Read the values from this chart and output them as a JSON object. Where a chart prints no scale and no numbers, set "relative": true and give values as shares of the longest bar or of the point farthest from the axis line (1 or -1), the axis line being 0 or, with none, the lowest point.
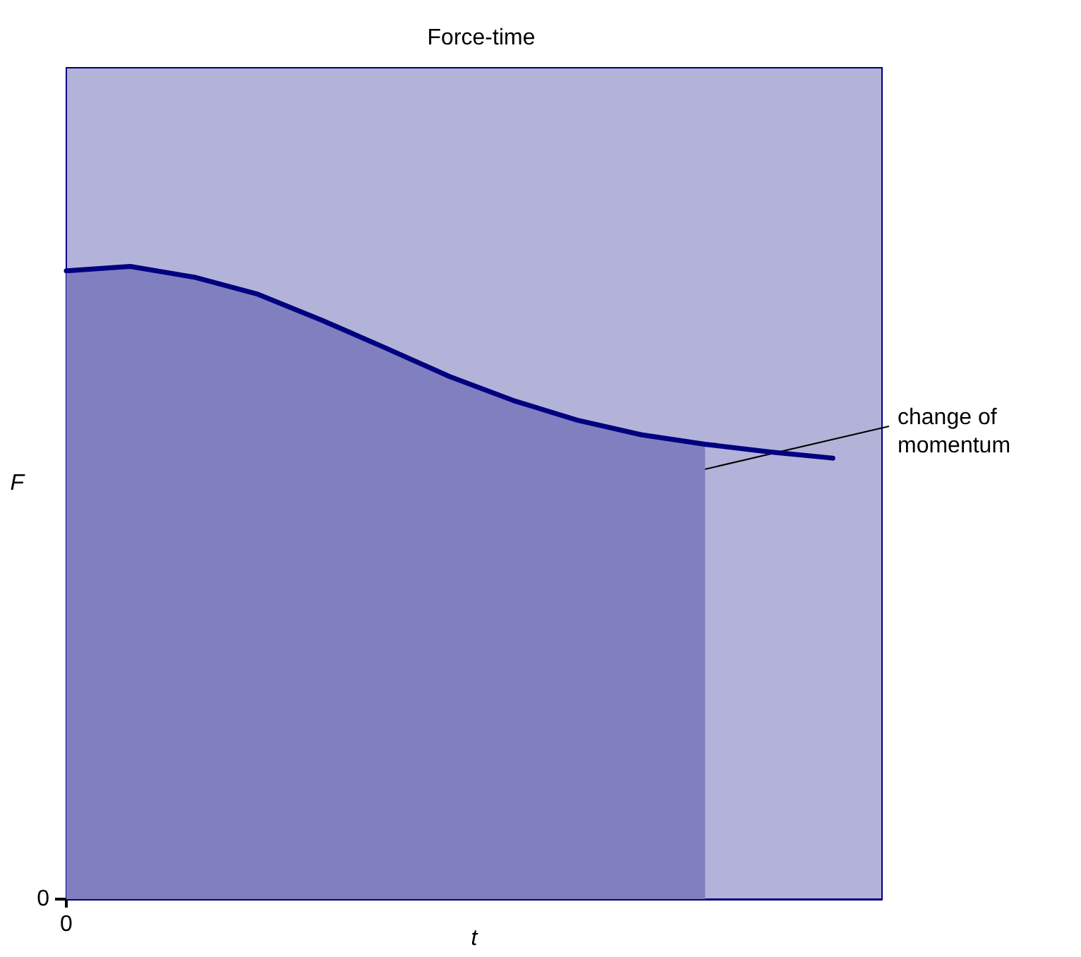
{
  "chart_data": {
    "type": "line",
    "title": "Force-time",
    "xlabel": "t",
    "ylabel": "F",
    "relative": true,
    "grid": false,
    "marker": "none",
    "line_style": "solid",
    "annotations": [
      "change of momentum",
      "0",
      "0"
    ],
    "categories": [
      null,
      null,
      null,
      null,
      null,
      null,
      null,
      null,
      null,
      null,
      null,
      null,
      null
    ],
    "series": [
      {
        "type": "area",
        "color": "#8080c0",
        "values": [
          0.993,
          1,
          0.983,
          0.956,
          0.915,
          0.871,
          0.826,
          0.788,
          0.757,
          0.734,
          0.719,
          null,
          null
        ]
      },
      {
        "type": "line",
        "color": "#000080",
        "values": [
          0.993,
          1,
          0.983,
          0.956,
          0.915,
          0.871,
          0.826,
          0.788,
          0.757,
          0.734,
          0.719,
          0.707,
          0.697
        ]
      }
    ]
  }
}
